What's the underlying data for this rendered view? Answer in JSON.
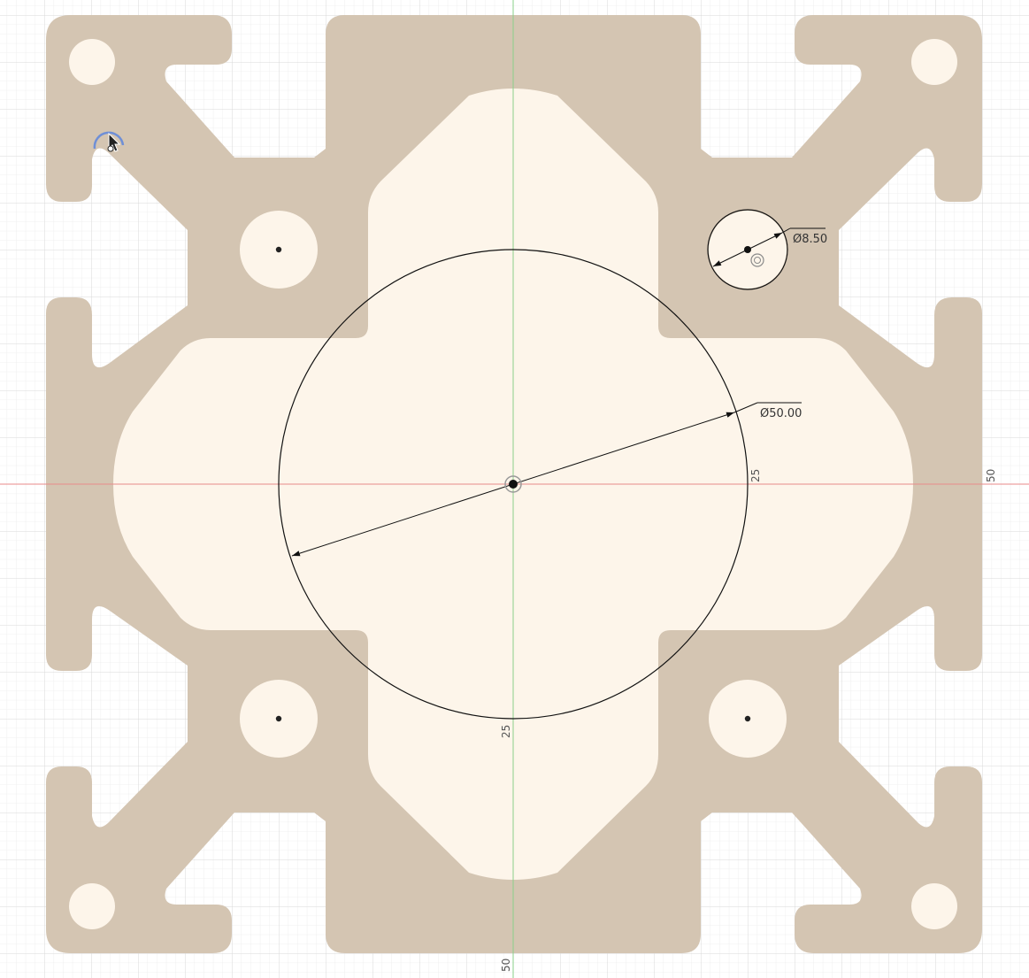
{
  "colors": {
    "background": "#ffffff",
    "grid_minor": "#ececec",
    "grid_major": "#d9d9d9",
    "profile_fill": "#d4c5b2",
    "void_fill": "#fdf5ea",
    "axis_x": "#e88a8a",
    "axis_y": "#8ad08a",
    "sketch_line": "#111111",
    "cursor_arc": "#6f8fd6"
  },
  "dimensions": {
    "large_circle_diameter": "Ø50.00",
    "small_circle_diameter": "Ø8.50"
  },
  "axis_labels": {
    "x_inner": "25",
    "x_outer": "50",
    "y_inner": "25",
    "y_outer": "50"
  },
  "icons": {
    "origin": "origin-marker-icon",
    "cursor": "mouse-pointer-icon",
    "snap": "snap-target-icon"
  }
}
